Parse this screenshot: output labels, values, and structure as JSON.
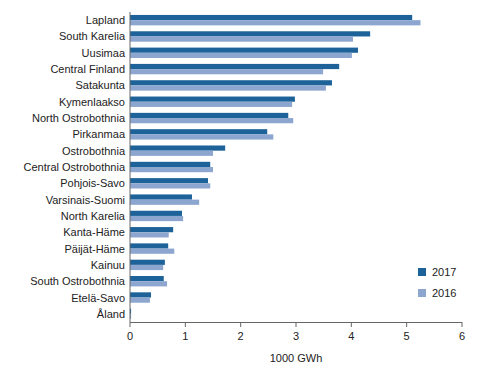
{
  "chart_data": {
    "type": "bar",
    "orientation": "horizontal",
    "x_label": "1000 GWh",
    "categories": [
      "Lapland",
      "South Karelia",
      "Uusimaa",
      "Central Finland",
      "Satakunta",
      "Kymenlaakso",
      "North Ostrobothnia",
      "Pirkanmaa",
      "Ostrobothnia",
      "Central Ostrobothnia",
      "Pohjois-Savo",
      "Varsinais-Suomi",
      "North Karelia",
      "Kanta-Häme",
      "Päijät-Häme",
      "Kainuu",
      "South Ostrobothnia",
      "Etelä-Savo",
      "Åland"
    ],
    "series": [
      {
        "name": "2017",
        "color": "#1d6399",
        "values": [
          5.1,
          4.34,
          4.12,
          3.78,
          3.65,
          2.98,
          2.86,
          2.48,
          1.72,
          1.45,
          1.41,
          1.12,
          0.94,
          0.78,
          0.69,
          0.63,
          0.61,
          0.38,
          0.02
        ]
      },
      {
        "name": "2016",
        "color": "#8da6cf",
        "values": [
          5.25,
          4.03,
          4.01,
          3.49,
          3.54,
          2.93,
          2.95,
          2.59,
          1.5,
          1.5,
          1.45,
          1.25,
          0.96,
          0.7,
          0.8,
          0.6,
          0.67,
          0.36,
          0.02
        ]
      }
    ],
    "xlim": [
      0,
      6
    ],
    "xticks": [
      0,
      1,
      2,
      3,
      4,
      5,
      6
    ],
    "grid": false,
    "legend": "bottom-right"
  }
}
